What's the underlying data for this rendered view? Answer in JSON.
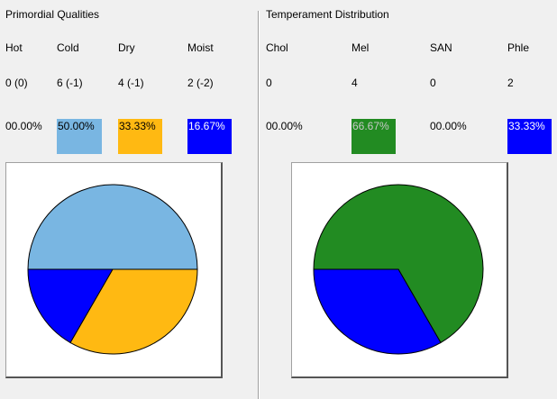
{
  "primordial": {
    "title": "Primordial Qualities",
    "headers": [
      "Hot",
      "Cold",
      "Dry",
      "Moist"
    ],
    "values": [
      "0 (0)",
      "6 (-1)",
      "4 (-1)",
      "2 (-2)"
    ],
    "percents": [
      "00.00%",
      "50.00%",
      "33.33%",
      "16.67%"
    ],
    "colors": [
      "",
      "#79b6e2",
      "#ffb912",
      "#0000ff"
    ],
    "text_colors": [
      "#000000",
      "#000000",
      "#000000",
      "#ffffff"
    ]
  },
  "temperament": {
    "title": "Temperament Distribution",
    "headers": [
      "Chol",
      "Mel",
      "SAN",
      "Phle"
    ],
    "values": [
      "0",
      "4",
      "0",
      "2"
    ],
    "percents": [
      "00.00%",
      "66.67%",
      "00.00%",
      "33.33%"
    ],
    "colors": [
      "",
      "#228b22",
      "",
      "#0000ff"
    ],
    "text_colors": [
      "#000000",
      "#c8c8c8",
      "#000000",
      "#ffffff"
    ]
  },
  "chart_data": [
    {
      "type": "pie",
      "title": "",
      "categories": [
        "Hot",
        "Cold",
        "Dry",
        "Moist"
      ],
      "values": [
        0,
        50.0,
        33.33,
        16.67
      ],
      "colors": [
        "#ffffff",
        "#79b6e2",
        "#ffb912",
        "#0000ff"
      ]
    },
    {
      "type": "pie",
      "title": "",
      "categories": [
        "Chol",
        "Mel",
        "SAN",
        "Phle"
      ],
      "values": [
        0,
        66.67,
        0,
        33.33
      ],
      "colors": [
        "#ffffff",
        "#228b22",
        "#ffffff",
        "#0000ff"
      ]
    }
  ]
}
